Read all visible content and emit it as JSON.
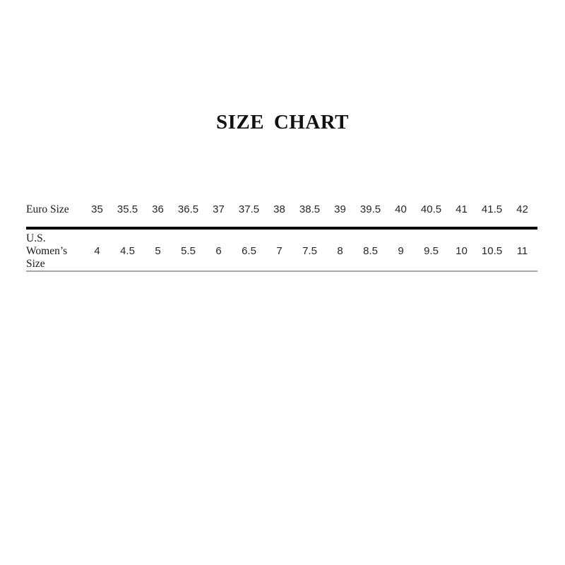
{
  "title": "SIZE CHART",
  "size_table": {
    "row1_label": "Euro Size",
    "row2_label": "U.S. Women’s Size",
    "euro_sizes": [
      "35",
      "35.5",
      "36",
      "36.5",
      "37",
      "37.5",
      "38",
      "38.5",
      "39",
      "39.5",
      "40",
      "40.5",
      "41",
      "41.5",
      "42"
    ],
    "us_sizes": [
      "4",
      "4.5",
      "5",
      "5.5",
      "6",
      "6.5",
      "7",
      "7.5",
      "8",
      "8.5",
      "9",
      "9.5",
      "10",
      "10.5",
      "11"
    ],
    "colors": {
      "title_text": "#111111",
      "label_text": "#1a1a1a",
      "number_text": "#262626",
      "thick_rule": "#000000",
      "bottom_rule": "#a6a6a6",
      "background": "#ffffff"
    }
  },
  "chart_data": {
    "type": "table",
    "title": "SIZE CHART",
    "columns": [
      "Euro Size",
      "35",
      "35.5",
      "36",
      "36.5",
      "37",
      "37.5",
      "38",
      "38.5",
      "39",
      "39.5",
      "40",
      "40.5",
      "41",
      "41.5",
      "42"
    ],
    "rows": [
      [
        "U.S. Women’s Size",
        "4",
        "4.5",
        "5",
        "5.5",
        "6",
        "6.5",
        "7",
        "7.5",
        "8",
        "8.5",
        "9",
        "9.5",
        "10",
        "10.5",
        "11"
      ]
    ]
  }
}
